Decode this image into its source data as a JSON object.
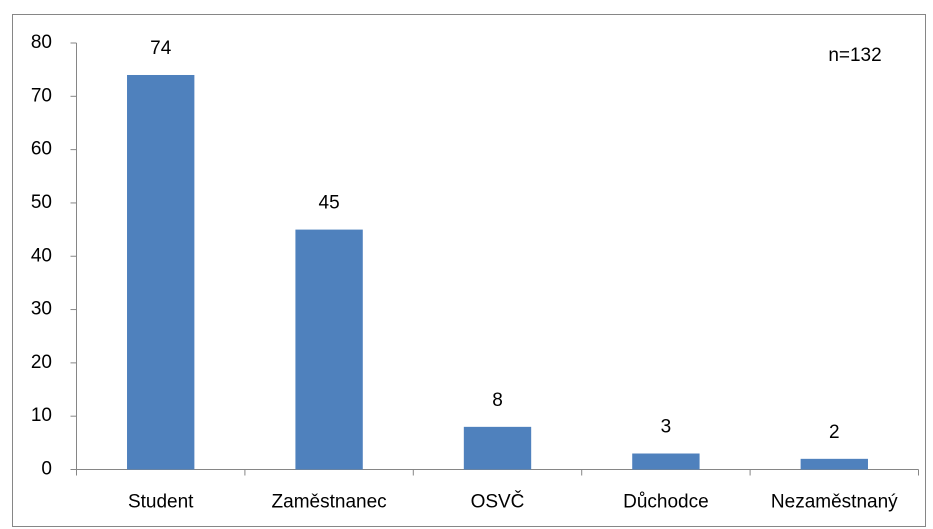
{
  "chart_data": {
    "type": "bar",
    "categories": [
      "Student",
      "Zaměstnanec",
      "OSVČ",
      "Důchodce",
      "Nezaměstnaný"
    ],
    "values": [
      74,
      45,
      8,
      3,
      2
    ],
    "color": "#4f81bd",
    "ylim": [
      0,
      80
    ],
    "yticks": [
      0,
      10,
      20,
      30,
      40,
      50,
      60,
      70,
      80
    ],
    "grid": false,
    "annotation": "n=132"
  }
}
